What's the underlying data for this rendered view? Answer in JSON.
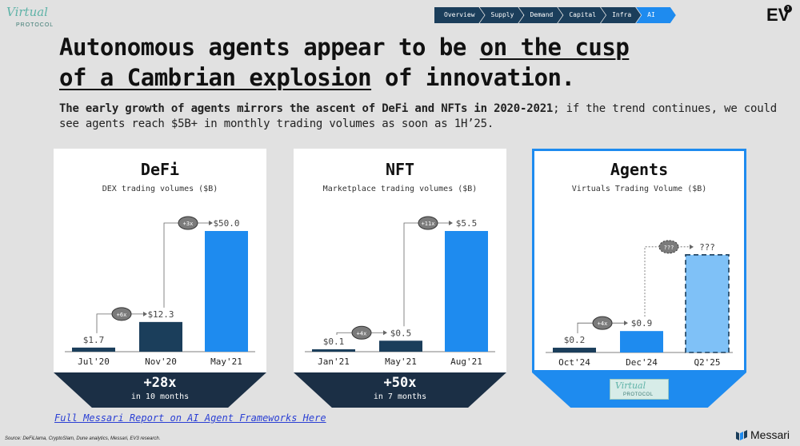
{
  "header": {
    "logo_script": "Virtual",
    "logo_sub": "PROTOCOL",
    "brand": "EV",
    "brand_badge": "3"
  },
  "nav": {
    "items": [
      "Overview",
      "Supply",
      "Demand",
      "Capital",
      "Infra",
      "AI"
    ],
    "active": "AI",
    "colors": {
      "default": "#1b3e5b",
      "active": "#1e8bef"
    }
  },
  "title": {
    "part1": "Autonomous agents appear to be ",
    "underline1": "on the cusp",
    "underline2": "of a Cambrian explosion",
    "part2": " of innovation."
  },
  "subtitle": {
    "bold": "The early growth of agents mirrors the ascent of DeFi and NFTs in 2020-2021",
    "rest": "; if the trend continues, we could see agents reach $5B+ in monthly trading volumes as soon as 1H’25."
  },
  "cards": [
    {
      "title": "DeFi",
      "subtitle": "DEX trading volumes ($B)",
      "banner_big": "+28x",
      "banner_small": "in 10 months"
    },
    {
      "title": "NFT",
      "subtitle": "Marketplace trading volumes ($B)",
      "banner_big": "+50x",
      "banner_small": "in 7 months"
    },
    {
      "title": "Agents",
      "subtitle": "Virtuals Trading Volume ($B)",
      "banner_logo_script": "Virtual",
      "banner_logo_sub": "PROTOCOL"
    }
  ],
  "chart_data": [
    {
      "type": "bar",
      "title": "DeFi",
      "subtitle": "DEX trading volumes ($B)",
      "categories": [
        "Jul'20",
        "Nov'20",
        "May'21"
      ],
      "values": [
        1.7,
        12.3,
        50.0
      ],
      "labels": [
        "$1.7",
        "$12.3",
        "$50.0"
      ],
      "multipliers": [
        "+6x",
        "+3x"
      ],
      "colors": [
        "#1b3e5b",
        "#1b3e5b",
        "#1e8bef"
      ],
      "ylim": [
        0,
        50
      ]
    },
    {
      "type": "bar",
      "title": "NFT",
      "subtitle": "Marketplace trading volumes ($B)",
      "categories": [
        "Jan'21",
        "May'21",
        "Aug'21"
      ],
      "values": [
        0.1,
        0.5,
        5.5
      ],
      "labels": [
        "$0.1",
        "$0.5",
        "$5.5"
      ],
      "multipliers": [
        "+4x",
        "+11x"
      ],
      "colors": [
        "#1b3e5b",
        "#1b3e5b",
        "#1e8bef"
      ],
      "ylim": [
        0,
        5.5
      ]
    },
    {
      "type": "bar",
      "title": "Agents",
      "subtitle": "Virtuals Trading Volume ($B)",
      "categories": [
        "Oct'24",
        "Dec'24",
        "Q2'25"
      ],
      "values": [
        0.2,
        0.9,
        null
      ],
      "labels": [
        "$0.2",
        "$0.9",
        "???"
      ],
      "multipliers": [
        "+4x",
        "???"
      ],
      "projected_fraction": 0.82,
      "colors": [
        "#1b3e5b",
        "#1e8bef",
        "#7fc1f7"
      ],
      "ylim": [
        0,
        5
      ]
    }
  ],
  "footer": {
    "link": "Full Messari Report on AI Agent Frameworks Here",
    "source": "Source: DeFiLlama, CryptoSlam, Dune analytics, Messari, EV3 research.",
    "messari": "Messari"
  }
}
